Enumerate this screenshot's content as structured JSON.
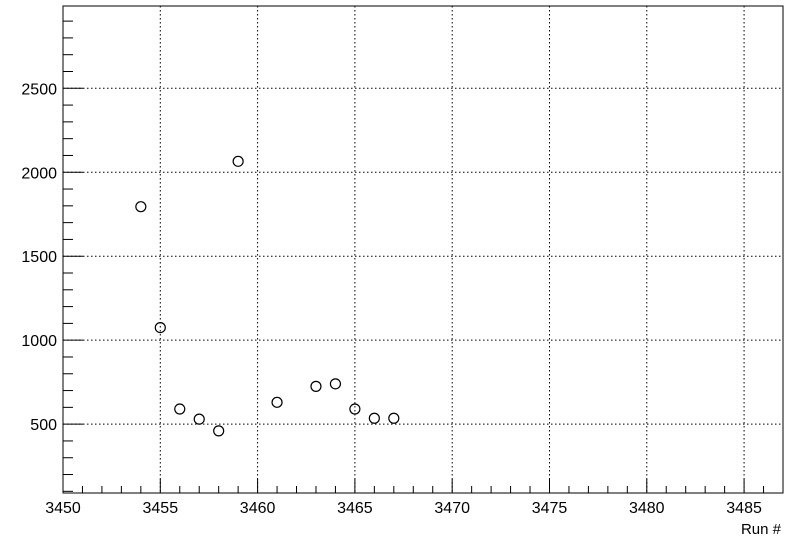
{
  "chart_data": {
    "type": "scatter",
    "title": "",
    "xlabel": "Run #",
    "ylabel": "",
    "xlim": [
      3450,
      3487
    ],
    "ylim": [
      90,
      2990
    ],
    "grid": true,
    "marker": "open-circle",
    "x_ticks": [
      3450,
      3455,
      3460,
      3465,
      3470,
      3475,
      3480,
      3485
    ],
    "y_ticks": [
      500,
      1000,
      1500,
      2000,
      2500
    ],
    "x_tick_labels": [
      "3450",
      "3455",
      "3460",
      "3465",
      "3470",
      "3475",
      "3480",
      "3485"
    ],
    "y_tick_labels": [
      "500",
      "1000",
      "1500",
      "2000",
      "2500"
    ],
    "series": [
      {
        "points": [
          {
            "x": 3454,
            "y": 1795
          },
          {
            "x": 3455,
            "y": 1075
          },
          {
            "x": 3456,
            "y": 590
          },
          {
            "x": 3457,
            "y": 530
          },
          {
            "x": 3458,
            "y": 460
          },
          {
            "x": 3459,
            "y": 2065
          },
          {
            "x": 3461,
            "y": 630
          },
          {
            "x": 3463,
            "y": 725
          },
          {
            "x": 3464,
            "y": 740
          },
          {
            "x": 3465,
            "y": 590
          },
          {
            "x": 3466,
            "y": 535
          },
          {
            "x": 3467,
            "y": 535
          }
        ]
      }
    ]
  }
}
